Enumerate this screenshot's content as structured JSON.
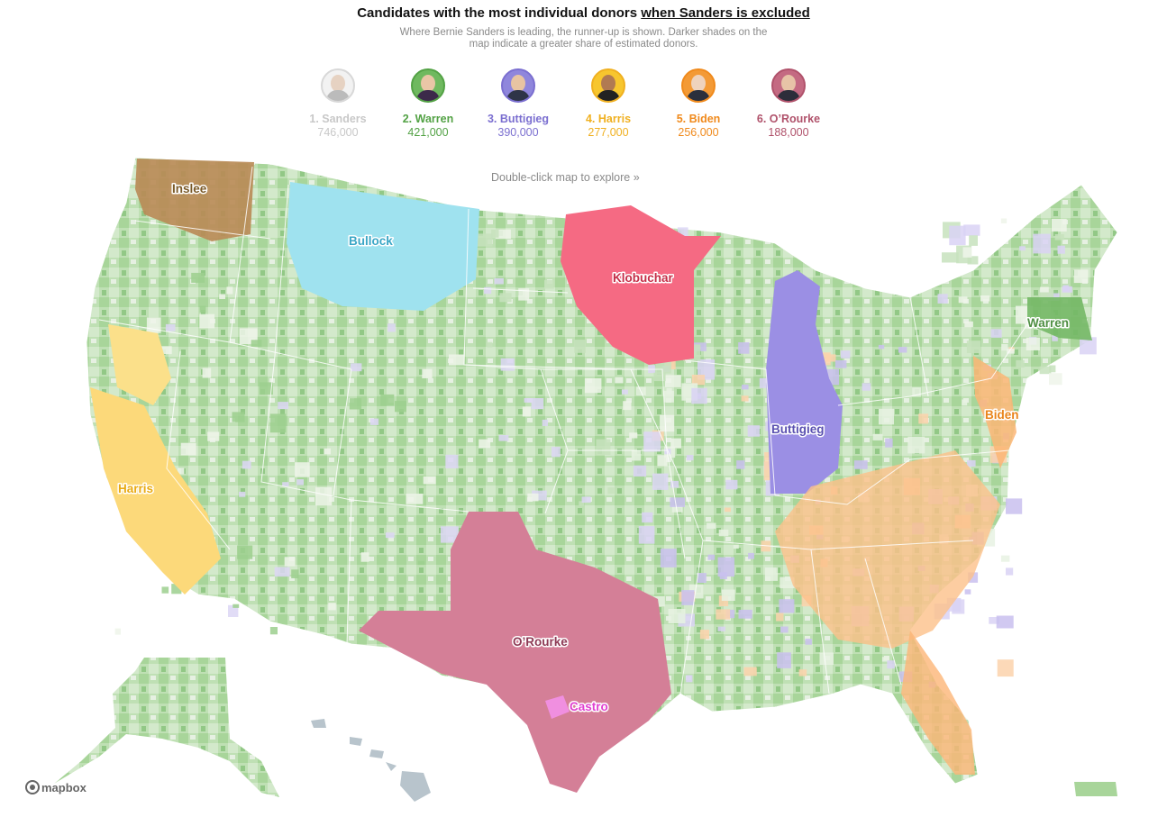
{
  "header": {
    "title_prefix": "Candidates with the most individual donors ",
    "title_link": "when Sanders is excluded",
    "subtitle": "Where Bernie Sanders is leading, the runner-up is shown. Darker shades on the map indicate a greater share of estimated donors."
  },
  "candidates": [
    {
      "label": "1. Sanders",
      "donors": "746,000",
      "color": "#c8c8c8",
      "portrait": "sanders-portrait"
    },
    {
      "label": "2. Warren",
      "donors": "421,000",
      "color": "#53a245",
      "portrait": "warren-portrait"
    },
    {
      "label": "3. Buttigieg",
      "donors": "390,000",
      "color": "#7b6fd0",
      "portrait": "buttigieg-portrait"
    },
    {
      "label": "4. Harris",
      "donors": "277,000",
      "color": "#f0b020",
      "portrait": "harris-portrait"
    },
    {
      "label": "5. Biden",
      "donors": "256,000",
      "color": "#f08a1c",
      "portrait": "biden-portrait"
    },
    {
      "label": "6. O’Rourke",
      "donors": "188,000",
      "color": "#b0526b",
      "portrait": "orourke-portrait"
    }
  ],
  "map": {
    "hint": "Double-click map to explore »",
    "attribution": "mapbox",
    "region_labels": {
      "inslee": "Inslee",
      "bullock": "Bullock",
      "klobuchar": "Klobuchar",
      "warren": "Warren",
      "biden": "Biden",
      "buttigieg": "Buttigieg",
      "harris": "Harris",
      "orourke": "O’Rourke",
      "castro": "Castro"
    },
    "label_colors": {
      "inslee": "#7a5a28",
      "bullock": "#3aa6c6",
      "klobuchar": "#c42e48",
      "warren": "#4f8f43",
      "biden": "#e9841a",
      "buttigieg": "#5a50b0",
      "harris": "#e9aa12",
      "orourke": "#8e3a55",
      "castro": "#e040d0"
    }
  }
}
